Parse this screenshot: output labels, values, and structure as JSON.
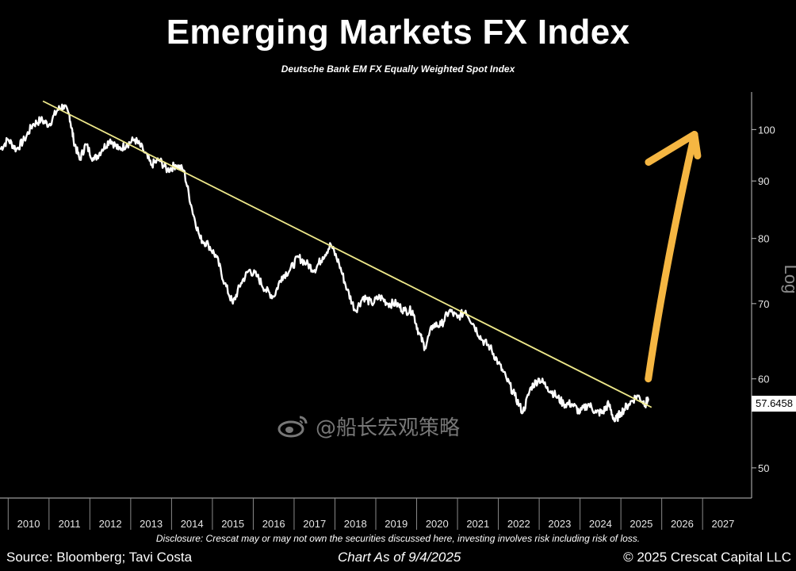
{
  "header": {
    "title": "Emerging Markets FX Index",
    "subtitle": "Deutsche Bank EM FX Equally Weighted Spot Index"
  },
  "footer": {
    "disclosure": "Disclosure: Crescat may or may not own the securities discussed here, investing involves risk including risk of loss.",
    "source": "Source: Bloomberg; Tavi Costa",
    "as_of": "Chart As of 9/4/2025",
    "copyright": "© 2025 Crescat Capital LLC"
  },
  "watermark": {
    "icon": "weibo-logo-icon",
    "text": "@船长宏观策略"
  },
  "chart_data": {
    "type": "line",
    "title": "Emerging Markets FX Index",
    "subtitle": "Deutsche Bank EM FX Equally Weighted Spot Index",
    "yscale": "log",
    "ylabel": "Log",
    "ylim": [
      47,
      108
    ],
    "xlim": [
      2009.8,
      2028.2
    ],
    "x_ticks": [
      "2010",
      "2011",
      "2012",
      "2013",
      "2014",
      "2015",
      "2016",
      "2017",
      "2018",
      "2019",
      "2020",
      "2021",
      "2022",
      "2023",
      "2024",
      "2025",
      "2026",
      "2027"
    ],
    "y_ticks": [
      50,
      60,
      70,
      80,
      90,
      100
    ],
    "last_value": "57.6458",
    "last_value_numeric": 57.6458,
    "grid": false,
    "series": [
      {
        "color": "#ffffff",
        "x": [
          2009.8,
          2010.0,
          2010.2,
          2010.4,
          2010.6,
          2010.8,
          2011.0,
          2011.2,
          2011.35,
          2011.5,
          2011.6,
          2011.75,
          2011.9,
          2012.1,
          2012.3,
          2012.5,
          2012.7,
          2012.9,
          2013.1,
          2013.3,
          2013.5,
          2013.7,
          2013.9,
          2014.1,
          2014.3,
          2014.5,
          2014.7,
          2014.9,
          2015.1,
          2015.3,
          2015.5,
          2015.7,
          2015.9,
          2016.1,
          2016.3,
          2016.5,
          2016.7,
          2016.9,
          2017.1,
          2017.3,
          2017.5,
          2017.7,
          2017.9,
          2018.1,
          2018.3,
          2018.5,
          2018.7,
          2018.9,
          2019.1,
          2019.3,
          2019.5,
          2019.7,
          2019.9,
          2020.05,
          2020.2,
          2020.4,
          2020.6,
          2020.8,
          2021.0,
          2021.2,
          2021.4,
          2021.6,
          2021.8,
          2022.0,
          2022.2,
          2022.4,
          2022.6,
          2022.8,
          2023.0,
          2023.2,
          2023.4,
          2023.6,
          2023.8,
          2024.0,
          2024.2,
          2024.4,
          2024.55,
          2024.7,
          2024.85,
          2025.0,
          2025.2,
          2025.4,
          2025.6,
          2025.67
        ],
        "values": [
          96,
          98,
          96,
          98,
          101,
          102,
          101,
          104,
          105,
          103,
          98,
          94,
          97,
          94,
          96,
          98,
          96,
          97,
          98,
          96,
          93,
          94,
          92,
          93,
          92,
          85,
          80,
          79,
          77,
          73,
          70,
          73,
          75,
          74,
          72,
          71,
          74,
          75,
          77,
          76,
          75,
          77,
          79,
          76,
          72,
          69,
          71,
          70,
          71,
          70,
          70,
          69,
          69,
          66,
          64,
          67,
          67,
          69,
          68,
          69,
          67,
          65,
          64,
          62,
          60,
          58,
          56,
          59,
          60,
          59,
          58,
          57,
          57,
          56,
          57,
          56,
          56,
          57,
          55,
          56,
          57,
          58,
          57,
          57.6458
        ]
      }
    ],
    "annotations": [
      {
        "type": "trendline",
        "color": "#eee88a",
        "from": {
          "x": 2010.85,
          "y": 106
        },
        "to": {
          "x": 2025.75,
          "y": 56.6
        }
      },
      {
        "type": "arrow",
        "color": "#f5b642",
        "direction": "up",
        "from": {
          "x": 2025.67,
          "y": 60
        },
        "to": {
          "x": 2026.8,
          "y": 99
        }
      }
    ]
  }
}
